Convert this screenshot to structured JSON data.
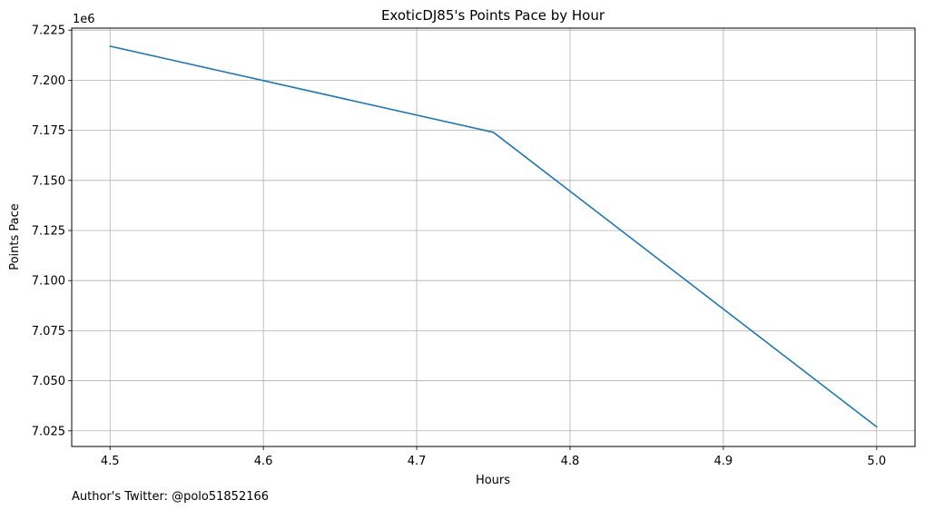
{
  "chart_data": {
    "type": "line",
    "title": "ExoticDJ85's Points Pace by Hour",
    "xlabel": "Hours",
    "ylabel": "Points Pace",
    "y_offset_label": "1e6",
    "y_multiplier": 1000000,
    "xlim": [
      4.475,
      5.025
    ],
    "ylim": [
      7.0172,
      7.226
    ],
    "x_ticks": [
      4.5,
      4.6,
      4.7,
      4.8,
      4.9,
      5.0
    ],
    "x_tick_labels": [
      "4.5",
      "4.6",
      "4.7",
      "4.8",
      "4.9",
      "5.0"
    ],
    "y_ticks": [
      7.025,
      7.05,
      7.075,
      7.1,
      7.125,
      7.15,
      7.175,
      7.2,
      7.225
    ],
    "y_tick_labels": [
      "7.025",
      "7.050",
      "7.075",
      "7.100",
      "7.125",
      "7.150",
      "7.175",
      "7.200",
      "7.225"
    ],
    "grid": true,
    "series": [
      {
        "color": "#1f77b4",
        "x": [
          4.5,
          4.75,
          5.0
        ],
        "y": [
          7.217,
          7.174,
          7.027
        ]
      }
    ]
  },
  "footer": {
    "note": "Author's Twitter: @polo51852166"
  }
}
